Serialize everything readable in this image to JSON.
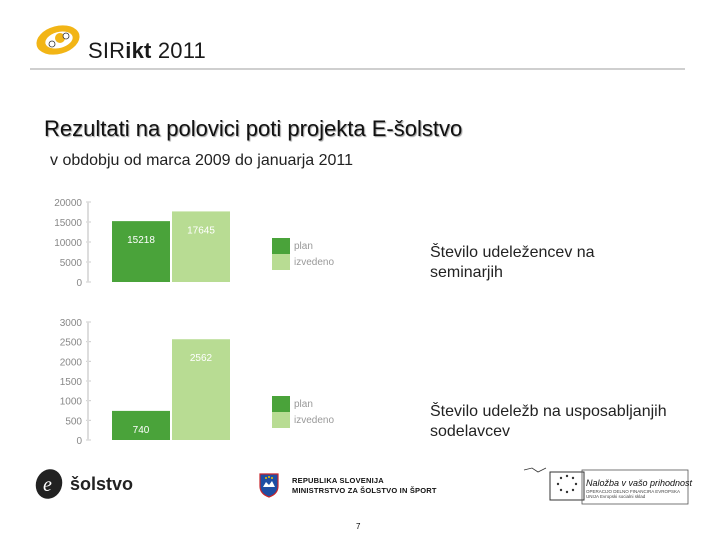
{
  "header": {
    "logo_text_regular": "SIR",
    "logo_text_bold": "ikt",
    "logo_year": " 2011"
  },
  "title": "Rezultati na polovici poti projekta E-šolstvo",
  "subtitle": "v obdobju od marca 2009 do januarja 2011",
  "colors": {
    "plan": "#4aa33a",
    "izvedeno": "#b8dc93",
    "axis_text": "#888888"
  },
  "chart_data": [
    {
      "type": "bar",
      "categories": [
        "plan",
        "izvedeno"
      ],
      "values": [
        15218,
        17645
      ],
      "value_labels": [
        "15218",
        "17645"
      ],
      "yticks": [
        "20000",
        "15000",
        "10000",
        "5000",
        "0"
      ],
      "ylim": [
        0,
        20000
      ],
      "legend": [
        "plan",
        "izvedeno"
      ],
      "caption": "Število udeležencev na seminarjih"
    },
    {
      "type": "bar",
      "categories": [
        "plan",
        "izvedeno"
      ],
      "values": [
        740,
        2562
      ],
      "value_labels": [
        "740",
        "2562"
      ],
      "yticks": [
        "3000",
        "2500",
        "2000",
        "1500",
        "1000",
        "500",
        "0"
      ],
      "ylim": [
        0,
        3000
      ],
      "legend": [
        "plan",
        "izvedeno"
      ],
      "caption": "Število udeležb na usposabljanjih sodelavcev"
    }
  ],
  "footer": {
    "esolstvo_logo_text": "šolstvo",
    "ministry_line1": "REPUBLIKA SLOVENIJA",
    "ministry_line2": "MINISTRSTVO ZA ŠOLSTVO IN ŠPORT",
    "eu_tagline": "Naložba v vašo prihodnost",
    "eu_small_text": "OPERACIJO DELNO FINANCIRA EVROPSKA UNIJA Evropski socialni sklad",
    "page_number": "7"
  }
}
